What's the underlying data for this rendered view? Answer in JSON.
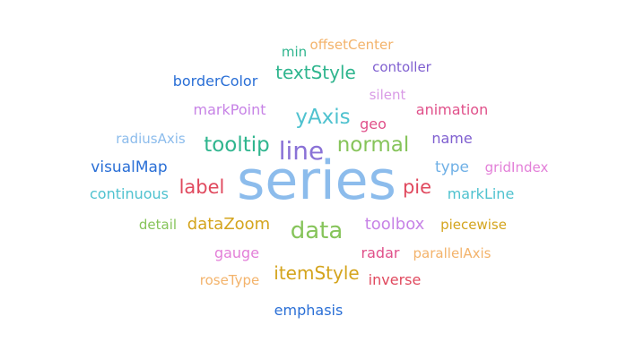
{
  "chart_data": {
    "type": "wordcloud",
    "title": "",
    "words": [
      {
        "text": "series",
        "color": "#8cbcec"
      },
      {
        "text": "line",
        "color": "#8a72d6"
      },
      {
        "text": "data",
        "color": "#86c45a"
      },
      {
        "text": "yAxis",
        "color": "#4fc2cf"
      },
      {
        "text": "normal",
        "color": "#86c45a"
      },
      {
        "text": "tooltip",
        "color": "#2fb58e"
      },
      {
        "text": "textStyle",
        "color": "#2fb58e"
      },
      {
        "text": "itemStyle",
        "color": "#d4a41d"
      },
      {
        "text": "label",
        "color": "#e0495e"
      },
      {
        "text": "pie",
        "color": "#e0495e"
      },
      {
        "text": "dataZoom",
        "color": "#d4a41d"
      },
      {
        "text": "toolbox",
        "color": "#c783e6"
      },
      {
        "text": "visualMap",
        "color": "#2a6fd6"
      },
      {
        "text": "continuous",
        "color": "#4fc2cf"
      },
      {
        "text": "markPoint",
        "color": "#c783e6"
      },
      {
        "text": "type",
        "color": "#6fb0e6"
      },
      {
        "text": "markLine",
        "color": "#4fc2cf"
      },
      {
        "text": "name",
        "color": "#7f5fd0"
      },
      {
        "text": "geo",
        "color": "#e0508a"
      },
      {
        "text": "borderColor",
        "color": "#2a6fd6"
      },
      {
        "text": "animation",
        "color": "#e0508a"
      },
      {
        "text": "radar",
        "color": "#e0508a"
      },
      {
        "text": "gauge",
        "color": "#e37fd8"
      },
      {
        "text": "emphasis",
        "color": "#2a6fd6"
      },
      {
        "text": "inverse",
        "color": "#e0495e"
      },
      {
        "text": "roseType",
        "color": "#f3b36b"
      },
      {
        "text": "parallelAxis",
        "color": "#f3b36b"
      },
      {
        "text": "piecewise",
        "color": "#d4a41d"
      },
      {
        "text": "detail",
        "color": "#86c45a"
      },
      {
        "text": "gridIndex",
        "color": "#e37fd8"
      },
      {
        "text": "radiusAxis",
        "color": "#8cbcec"
      },
      {
        "text": "silent",
        "color": "#d99ae6"
      },
      {
        "text": "contoller",
        "color": "#7f5fd0"
      },
      {
        "text": "min",
        "color": "#2fb58e"
      },
      {
        "text": "offsetCenter",
        "color": "#f3b36b"
      }
    ]
  }
}
